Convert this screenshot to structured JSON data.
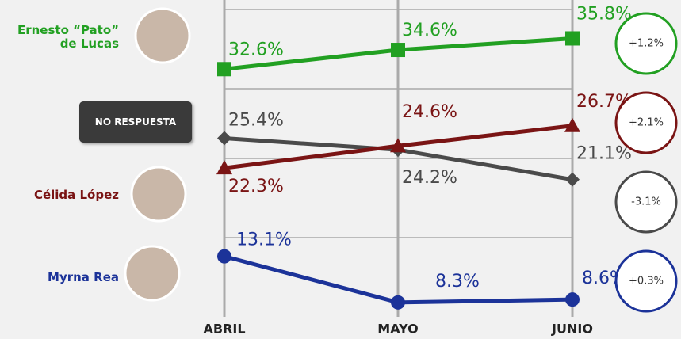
{
  "chart_data": {
    "type": "line",
    "categories": [
      "ABRIL",
      "MAYO",
      "JUNIO"
    ],
    "ylim": [
      6.8,
      39.8
    ],
    "series": [
      {
        "name": "Ernesto “Pato” de Lucas",
        "color": "#22a022",
        "marker": "square",
        "values": [
          32.6,
          34.6,
          35.8
        ],
        "value_labels": [
          "32.6%",
          "34.6%",
          "35.8%"
        ],
        "change_label": "+1.2%"
      },
      {
        "name": "NO RESPUESTA",
        "color": "#4a4a4a",
        "marker": "diamond",
        "values": [
          25.4,
          24.2,
          21.1
        ],
        "value_labels": [
          "25.4%",
          "24.2%",
          "21.1%"
        ],
        "change_label": "-3.1%"
      },
      {
        "name": "Célida López",
        "color": "#7a1414",
        "marker": "triangle",
        "values": [
          22.3,
          24.6,
          26.7
        ],
        "value_labels": [
          "22.3%",
          "24.6%",
          "26.7%"
        ],
        "change_label": "+2.1%"
      },
      {
        "name": "Myrna Rea",
        "color": "#1c3399",
        "marker": "circle",
        "values": [
          13.1,
          8.3,
          8.6
        ],
        "value_labels": [
          "13.1%",
          "8.3%",
          "8.6%"
        ],
        "change_label": "+0.3%"
      }
    ]
  }
}
